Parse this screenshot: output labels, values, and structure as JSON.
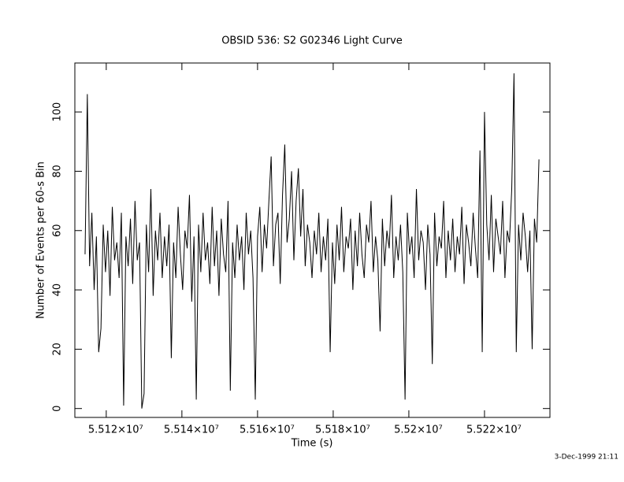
{
  "chart_data": {
    "type": "line",
    "title": "OBSID 536: S2 G02346 Light Curve",
    "xlabel": "Time (s)",
    "ylabel": "Number of Events per 60-s Bin",
    "footer": "3-Dec-1999 21:11",
    "xlim": [
      55111700,
      55237300
    ],
    "ylim": [
      -3,
      116.5
    ],
    "xticks": [
      {
        "value": 55120000,
        "label": "5.512×10⁷"
      },
      {
        "value": 55140000,
        "label": "5.514×10⁷"
      },
      {
        "value": 55160000,
        "label": "5.516×10⁷"
      },
      {
        "value": 55180000,
        "label": "5.518×10⁷"
      },
      {
        "value": 55200000,
        "label": "5.52×10⁷"
      },
      {
        "value": 55220000,
        "label": "5.522×10⁷"
      }
    ],
    "yticks": [
      0,
      20,
      40,
      60,
      80,
      100
    ],
    "color": "#000000",
    "x": [
      55114400,
      55115000,
      55115600,
      55116200,
      55116800,
      55117400,
      55118000,
      55118600,
      55119200,
      55119800,
      55120400,
      55121000,
      55121600,
      55122200,
      55122800,
      55123400,
      55124000,
      55124600,
      55125200,
      55125800,
      55126400,
      55127000,
      55127600,
      55128200,
      55128800,
      55129400,
      55130000,
      55130600,
      55131200,
      55131800,
      55132400,
      55133000,
      55133600,
      55134200,
      55134800,
      55135400,
      55136000,
      55136600,
      55137200,
      55137800,
      55138400,
      55139000,
      55139600,
      55140200,
      55140800,
      55141400,
      55142000,
      55142600,
      55143200,
      55143800,
      55144400,
      55145000,
      55145600,
      55146200,
      55146800,
      55147400,
      55148000,
      55148600,
      55149200,
      55149800,
      55150400,
      55151000,
      55151600,
      55152200,
      55152800,
      55153400,
      55154000,
      55154600,
      55155200,
      55155800,
      55156400,
      55157000,
      55157600,
      55158200,
      55158800,
      55159400,
      55160000,
      55160600,
      55161200,
      55161800,
      55162400,
      55163000,
      55163600,
      55164200,
      55164800,
      55165400,
      55166000,
      55166600,
      55167200,
      55167800,
      55168400,
      55169000,
      55169600,
      55170200,
      55170800,
      55171400,
      55172000,
      55172600,
      55173200,
      55173800,
      55174400,
      55175000,
      55175600,
      55176200,
      55176800,
      55177400,
      55178000,
      55178600,
      55179200,
      55179800,
      55180400,
      55181000,
      55181600,
      55182200,
      55182800,
      55183400,
      55184000,
      55184600,
      55185200,
      55185800,
      55186400,
      55187000,
      55187600,
      55188200,
      55188800,
      55189400,
      55190000,
      55190600,
      55191200,
      55191800,
      55192400,
      55193000,
      55193600,
      55194200,
      55194800,
      55195400,
      55196000,
      55196600,
      55197200,
      55197800,
      55198400,
      55199000,
      55199600,
      55200200,
      55200800,
      55201400,
      55202000,
      55202600,
      55203200,
      55203800,
      55204400,
      55205000,
      55205600,
      55206200,
      55206800,
      55207400,
      55208000,
      55208600,
      55209200,
      55209800,
      55210400,
      55211000,
      55211600,
      55212200,
      55212800,
      55213400,
      55214000,
      55214600,
      55215200,
      55215800,
      55216400,
      55217000,
      55217600,
      55218200,
      55218800,
      55219400,
      55220000,
      55220600,
      55221200,
      55221800,
      55222400,
      55223000,
      55223600,
      55224200,
      55224800,
      55225400,
      55226000,
      55226600,
      55227200,
      55227800,
      55228400,
      55229000,
      55229600,
      55230200,
      55230800,
      55231400,
      55232000,
      55232600,
      55233200,
      55233800,
      55234400
    ],
    "values": [
      52,
      106,
      48,
      66,
      40,
      58,
      19,
      27,
      62,
      46,
      60,
      38,
      68,
      50,
      56,
      44,
      66,
      1,
      58,
      48,
      64,
      42,
      70,
      50,
      56,
      0,
      5,
      62,
      46,
      74,
      38,
      60,
      50,
      66,
      44,
      58,
      48,
      62,
      17,
      56,
      44,
      68,
      52,
      40,
      60,
      54,
      72,
      36,
      58,
      3,
      62,
      46,
      66,
      50,
      56,
      42,
      68,
      48,
      60,
      38,
      64,
      52,
      46,
      70,
      6,
      56,
      44,
      62,
      50,
      58,
      40,
      66,
      52,
      60,
      44,
      3,
      58,
      68,
      46,
      62,
      54,
      70,
      85,
      48,
      62,
      66,
      42,
      72,
      89,
      56,
      64,
      80,
      50,
      70,
      81,
      58,
      74,
      48,
      62,
      56,
      44,
      60,
      52,
      66,
      46,
      58,
      50,
      64,
      19,
      56,
      42,
      62,
      50,
      68,
      46,
      58,
      54,
      64,
      40,
      60,
      48,
      66,
      52,
      44,
      62,
      56,
      70,
      46,
      58,
      50,
      26,
      64,
      48,
      60,
      54,
      72,
      44,
      58,
      50,
      62,
      46,
      3,
      66,
      52,
      58,
      44,
      74,
      50,
      60,
      56,
      40,
      62,
      52,
      15,
      66,
      48,
      58,
      54,
      70,
      44,
      60,
      50,
      64,
      46,
      58,
      52,
      68,
      42,
      62,
      56,
      48,
      66,
      54,
      44,
      87,
      19,
      100,
      62,
      50,
      72,
      46,
      64,
      58,
      52,
      70,
      44,
      60,
      56,
      74,
      113,
      19,
      62,
      50,
      66,
      58,
      46,
      60,
      20,
      64,
      56,
      84
    ]
  }
}
